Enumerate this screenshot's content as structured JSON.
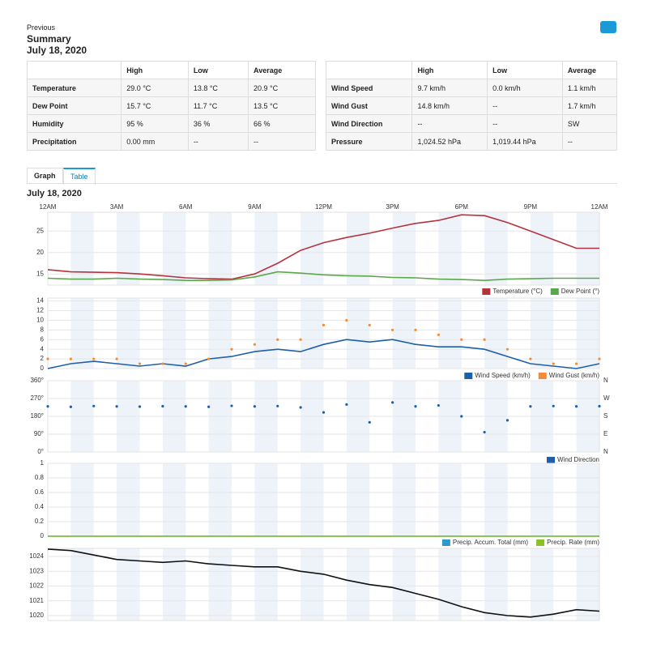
{
  "header": {
    "back_link": "Previous",
    "title": "Summary",
    "date": "July 18, 2020"
  },
  "tables": [
    {
      "columns": [
        "High",
        "Low",
        "Average"
      ],
      "rows": [
        {
          "label": "Temperature",
          "cells": [
            "29.0 °C",
            "13.8 °C",
            "20.9 °C"
          ]
        },
        {
          "label": "Dew Point",
          "cells": [
            "15.7 °C",
            "11.7 °C",
            "13.5 °C"
          ]
        },
        {
          "label": "Humidity",
          "cells": [
            "95 %",
            "36 %",
            "66 %"
          ]
        },
        {
          "label": "Precipitation",
          "cells": [
            "0.00 mm",
            "--",
            "--"
          ]
        }
      ]
    },
    {
      "columns": [
        "High",
        "Low",
        "Average"
      ],
      "rows": [
        {
          "label": "Wind Speed",
          "cells": [
            "9.7 km/h",
            "0.0 km/h",
            "1.1 km/h"
          ]
        },
        {
          "label": "Wind Gust",
          "cells": [
            "14.8 km/h",
            "--",
            "1.7 km/h"
          ]
        },
        {
          "label": "Wind Direction",
          "cells": [
            "--",
            "--",
            "SW"
          ]
        },
        {
          "label": "Pressure",
          "cells": [
            "1,024.52 hPa",
            "1,019.44 hPa",
            "--"
          ]
        }
      ]
    }
  ],
  "tabs": [
    "Graph",
    "Table"
  ],
  "graph_title": "July 18, 2020",
  "chart_data": [
    {
      "type": "line",
      "xlim": [
        0,
        24
      ],
      "x": [
        0,
        1,
        2,
        3,
        4,
        5,
        6,
        7,
        8,
        9,
        10,
        11,
        12,
        13,
        14,
        15,
        16,
        17,
        18,
        19,
        20,
        21,
        22,
        23,
        24
      ],
      "xticks": [
        {
          "value": 0,
          "label": "12AM"
        },
        {
          "value": 3,
          "label": "3AM"
        },
        {
          "value": 6,
          "label": "6AM"
        },
        {
          "value": 9,
          "label": "9AM"
        },
        {
          "value": 12,
          "label": "12PM"
        },
        {
          "value": 15,
          "label": "3PM"
        },
        {
          "value": 18,
          "label": "6PM"
        },
        {
          "value": 21,
          "label": "9PM"
        },
        {
          "value": 24,
          "label": "12AM"
        }
      ],
      "ylim": [
        12.4,
        29.4
      ],
      "yticks": [
        15,
        20,
        25
      ],
      "series": [
        {
          "name": "Temperature (°C)",
          "color": "#b5323f",
          "values": [
            16,
            15.5,
            15.4,
            15.3,
            15,
            14.6,
            14.1,
            13.9,
            13.8,
            15,
            17.5,
            20.5,
            22.3,
            23.5,
            24.5,
            25.7,
            26.8,
            27.5,
            28.8,
            28.6,
            27,
            25,
            23,
            21,
            21
          ]
        },
        {
          "name": "Dew Point (°)",
          "color": "#5aa84b",
          "values": [
            14,
            13.8,
            13.8,
            14,
            13.8,
            13.7,
            13.5,
            13.5,
            13.6,
            14.3,
            15.5,
            15.2,
            14.8,
            14.6,
            14.5,
            14.2,
            14.1,
            13.8,
            13.7,
            13.5,
            13.8,
            13.9,
            14,
            14,
            14
          ]
        }
      ]
    },
    {
      "type": "line",
      "ylim": [
        0,
        14.6
      ],
      "yticks": [
        0,
        2,
        4,
        6,
        8,
        10,
        12,
        14
      ],
      "series": [
        {
          "name": "Wind Speed (km/h)",
          "color": "#1f5fa8",
          "values": [
            0,
            1,
            1.5,
            1,
            0.5,
            1,
            0.5,
            2,
            2.5,
            3.5,
            4,
            3.5,
            5,
            6,
            5.5,
            6,
            5,
            4.5,
            4.5,
            4,
            2.5,
            1,
            0.5,
            0,
            1
          ]
        },
        {
          "name": "Wind Gust (km/h)",
          "color": "#f28c38",
          "mode": "markers",
          "values": [
            2,
            2,
            2,
            2,
            1,
            1,
            1,
            2,
            4,
            5,
            6,
            6,
            9,
            10,
            9,
            8,
            8,
            7,
            6,
            6,
            4,
            2,
            1,
            1,
            2
          ]
        }
      ]
    },
    {
      "type": "scatter",
      "ylim": [
        0,
        360
      ],
      "yticks": [
        {
          "value": 0,
          "label": "0°"
        },
        {
          "value": 90,
          "label": "90°"
        },
        {
          "value": 180,
          "label": "180°"
        },
        {
          "value": 270,
          "label": "270°"
        },
        {
          "value": 360,
          "label": "360°"
        }
      ],
      "y2lim": [
        0,
        360
      ],
      "y2ticks": [
        {
          "value": 0,
          "label": "N"
        },
        {
          "value": 90,
          "label": "E"
        },
        {
          "value": 180,
          "label": "S"
        },
        {
          "value": 270,
          "label": "W"
        },
        {
          "value": 360,
          "label": "N"
        }
      ],
      "series": [
        {
          "name": "Wind Direction",
          "color": "#1f5fa8",
          "values": [
            230,
            228,
            232,
            230,
            229,
            231,
            230,
            228,
            233,
            230,
            232,
            225,
            200,
            240,
            150,
            250,
            230,
            235,
            180,
            100,
            160,
            230,
            232,
            230,
            231
          ]
        }
      ]
    },
    {
      "type": "line",
      "ylim": [
        0,
        1
      ],
      "yticks": [
        0,
        0.2,
        0.4,
        0.6,
        0.8,
        1
      ],
      "series": [
        {
          "name": "Precip. Accum. Total (mm)",
          "color": "#2d9ac9",
          "values": [
            0,
            0,
            0,
            0,
            0,
            0,
            0,
            0,
            0,
            0,
            0,
            0,
            0,
            0,
            0,
            0,
            0,
            0,
            0,
            0,
            0,
            0,
            0,
            0,
            0
          ]
        },
        {
          "name": "Precip. Rate (mm)",
          "color": "#8cc02a",
          "values": [
            0,
            0,
            0,
            0,
            0,
            0,
            0,
            0,
            0,
            0,
            0,
            0,
            0,
            0,
            0,
            0,
            0,
            0,
            0,
            0,
            0,
            0,
            0,
            0,
            0
          ]
        }
      ]
    },
    {
      "type": "line",
      "ylim": [
        1019.67,
        1024.55
      ],
      "yticks": [
        1020,
        1021,
        1022,
        1023,
        1024
      ],
      "series": [
        {
          "color": "#111111",
          "values": [
            1024.5,
            1024.4,
            1024.1,
            1023.8,
            1023.7,
            1023.6,
            1023.7,
            1023.5,
            1023.4,
            1023.3,
            1023.3,
            1023.0,
            1022.8,
            1022.4,
            1022.1,
            1021.9,
            1021.5,
            1021.1,
            1020.6,
            1020.2,
            1020.0,
            1019.9,
            1020.1,
            1020.4,
            1020.3
          ]
        }
      ]
    }
  ]
}
